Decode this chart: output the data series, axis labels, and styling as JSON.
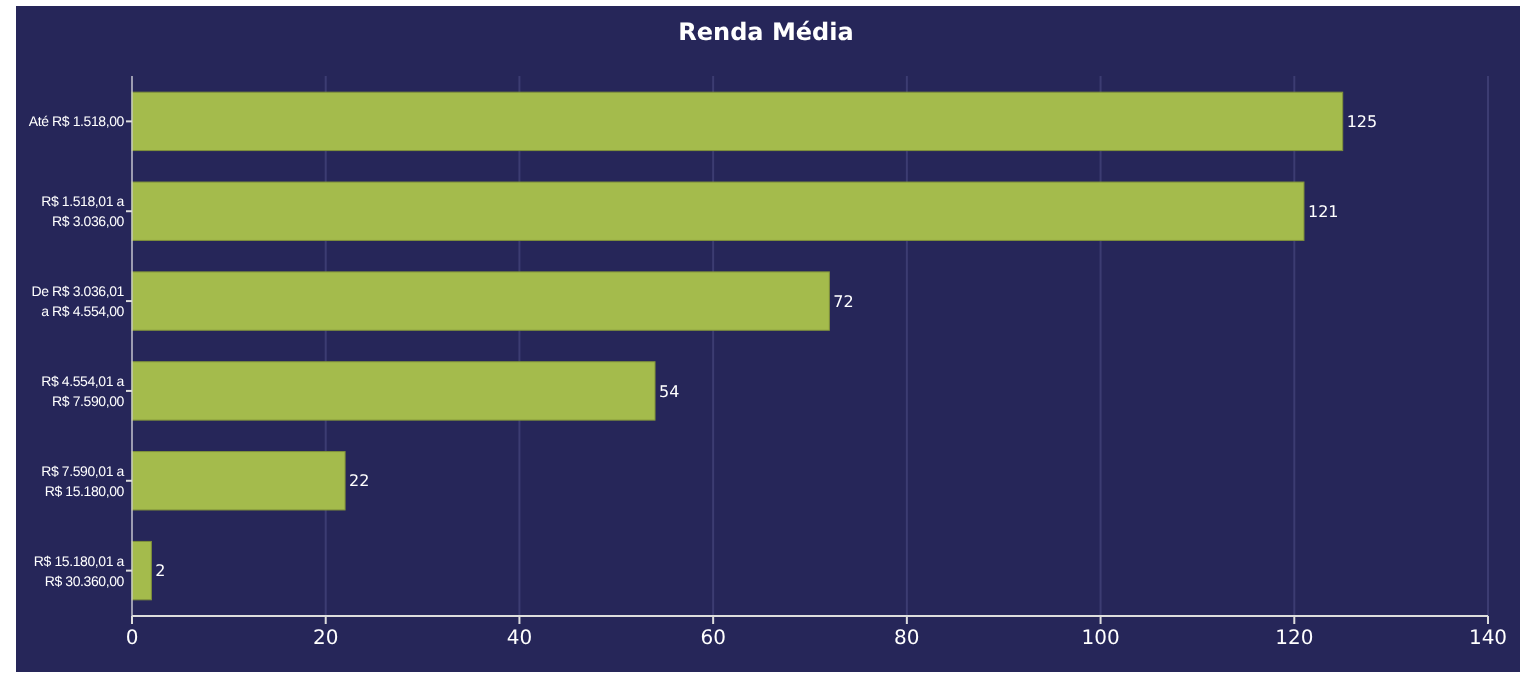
{
  "chart_data": {
    "type": "bar",
    "orientation": "horizontal",
    "title": "Renda Média",
    "categories": [
      "Até R$ 1.518,00",
      "R$ 1.518,01 a\nR$ 3.036,00",
      "De R$ 3.036,01\na R$ 4.554,00",
      "R$ 4.554,01 a\nR$ 7.590,00",
      "R$ 7.590,01 a\nR$ 15.180,00",
      "R$ 15.180,01 a\nR$ 30.360,00"
    ],
    "values": [
      125,
      121,
      72,
      54,
      22,
      2
    ],
    "color": "#a4bb4c",
    "xlim": [
      0,
      140
    ],
    "xticks": [
      0,
      20,
      40,
      60,
      80,
      100,
      120,
      140
    ],
    "grid": "x",
    "data_labels": true
  }
}
